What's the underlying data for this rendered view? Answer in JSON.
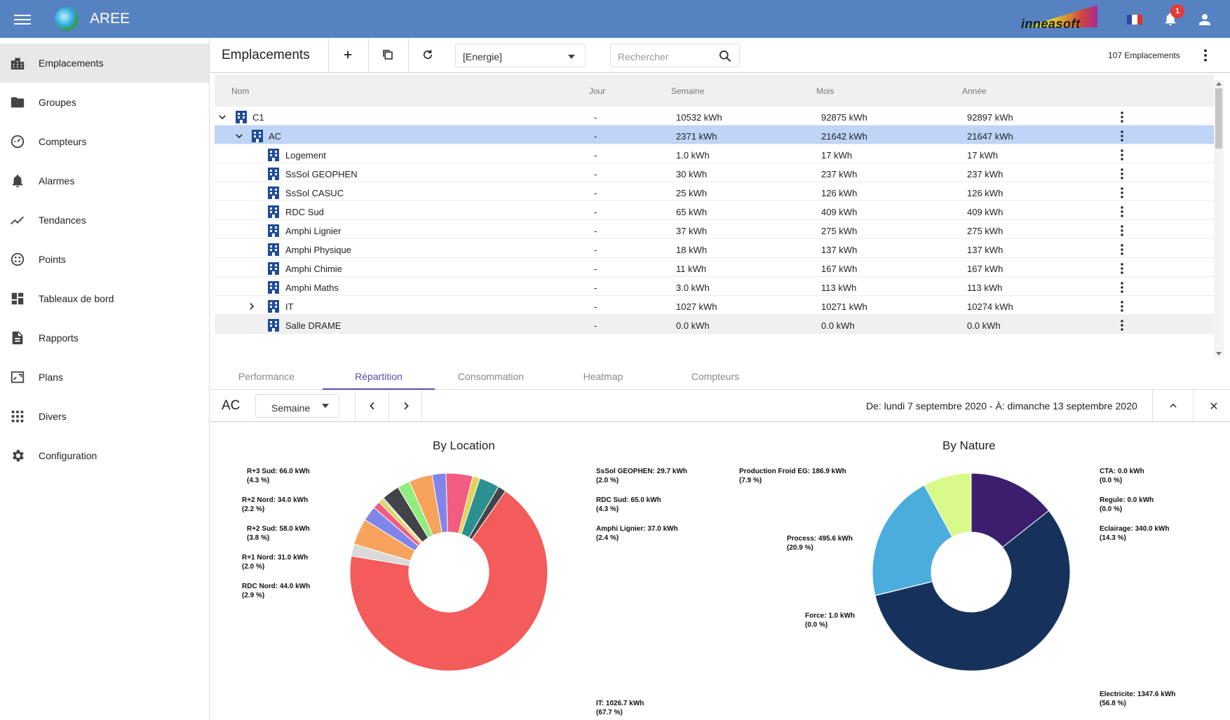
{
  "app": {
    "title": "AREE",
    "brand": "inneasoft",
    "notifications": "1"
  },
  "sidebar": {
    "items": [
      {
        "label": "Emplacements",
        "icon": "buildings-icon"
      },
      {
        "label": "Groupes",
        "icon": "folder-icon"
      },
      {
        "label": "Compteurs",
        "icon": "meter-icon"
      },
      {
        "label": "Alarmes",
        "icon": "bell-icon"
      },
      {
        "label": "Tendances",
        "icon": "trend-icon"
      },
      {
        "label": "Points",
        "icon": "points-icon"
      },
      {
        "label": "Tableaux de bord",
        "icon": "dashboard-icon"
      },
      {
        "label": "Rapports",
        "icon": "report-icon"
      },
      {
        "label": "Plans",
        "icon": "plan-icon"
      },
      {
        "label": "Divers",
        "icon": "grid-icon"
      },
      {
        "label": "Configuration",
        "icon": "gear-icon"
      }
    ]
  },
  "toolbar": {
    "title": "Emplacements",
    "filter": "[Energie]",
    "search_placeholder": "Rechercher",
    "count": "107 Emplacements"
  },
  "table": {
    "headers": {
      "name": "Nom",
      "day": "Jour",
      "week": "Semaine",
      "month": "Mois",
      "year": "Année"
    },
    "rows": [
      {
        "name": "C1",
        "day": "-",
        "week": "10532 kWh",
        "month": "92875 kWh",
        "year": "92897 kWh"
      },
      {
        "name": "AC",
        "day": "-",
        "week": "2371 kWh",
        "month": "21642 kWh",
        "year": "21647 kWh"
      },
      {
        "name": "Logement",
        "day": "-",
        "week": "1.0 kWh",
        "month": "17 kWh",
        "year": "17 kWh"
      },
      {
        "name": "SsSol GEOPHEN",
        "day": "-",
        "week": "30 kWh",
        "month": "237 kWh",
        "year": "237 kWh"
      },
      {
        "name": "SsSol CASUC",
        "day": "-",
        "week": "25 kWh",
        "month": "126 kWh",
        "year": "126 kWh"
      },
      {
        "name": "RDC Sud",
        "day": "-",
        "week": "65 kWh",
        "month": "409 kWh",
        "year": "409 kWh"
      },
      {
        "name": "Amphi Lignier",
        "day": "-",
        "week": "37 kWh",
        "month": "275 kWh",
        "year": "275 kWh"
      },
      {
        "name": "Amphi Physique",
        "day": "-",
        "week": "18 kWh",
        "month": "137 kWh",
        "year": "137 kWh"
      },
      {
        "name": "Amphi Chimie",
        "day": "-",
        "week": "11 kWh",
        "month": "167 kWh",
        "year": "167 kWh"
      },
      {
        "name": "Amphi Maths",
        "day": "-",
        "week": "3.0 kWh",
        "month": "113 kWh",
        "year": "113 kWh"
      },
      {
        "name": "IT",
        "day": "-",
        "week": "1027 kWh",
        "month": "10271 kWh",
        "year": "10274 kWh"
      },
      {
        "name": "Salle DRAME",
        "day": "-",
        "week": "0.0 kWh",
        "month": "0.0 kWh",
        "year": "0.0 kWh"
      }
    ]
  },
  "tabs": [
    "Performance",
    "Répartition",
    "Consommation",
    "Heatmap",
    "Compteurs"
  ],
  "panel": {
    "title": "AC",
    "period": "Semaine",
    "range": "De: lundi 7 septembre 2020 - À: dimanche 13 septembre 2020"
  },
  "chart_data": [
    {
      "type": "pie",
      "title": "By Location",
      "slices": [
        {
          "label": "IT: 1026.7 kWh",
          "pct": "(67.7 %)",
          "value": 1026.7,
          "color": "#f45b5b"
        },
        {
          "label": "SsSol GEOPHEN: 29.7 kWh",
          "pct": "(2.0 %)",
          "value": 29.7,
          "color": "#d9d9d9"
        },
        {
          "label": "RDC Sud: 65.0 kWh",
          "pct": "(4.3 %)",
          "value": 65.0,
          "color": "#f7a35c"
        },
        {
          "label": "Amphi Lignier: 37.0 kWh",
          "pct": "(2.4 %)",
          "value": 37.0,
          "color": "#8085e9"
        },
        {
          "label": "",
          "pct": "",
          "value": 18.0,
          "color": "#f15c80"
        },
        {
          "label": "",
          "pct": "",
          "value": 11.0,
          "color": "#e4d354"
        },
        {
          "label": "",
          "pct": "",
          "value": 3.0,
          "color": "#2b908f"
        },
        {
          "label": "",
          "pct": "",
          "value": 1.0,
          "color": "#90ed7d"
        },
        {
          "label": "RDC Nord: 44.0 kWh",
          "pct": "(2.9 %)",
          "value": 44.0,
          "color": "#434348"
        },
        {
          "label": "R+1 Nord: 31.0 kWh",
          "pct": "(2.0 %)",
          "value": 31.0,
          "color": "#90ed7d"
        },
        {
          "label": "R+2 Sud: 58.0 kWh",
          "pct": "(3.8 %)",
          "value": 58.0,
          "color": "#f7a35c"
        },
        {
          "label": "R+2 Nord: 34.0 kWh",
          "pct": "(2.2 %)",
          "value": 34.0,
          "color": "#8085e9"
        },
        {
          "label": "R+3 Sud: 66.0 kWh",
          "pct": "(4.3 %)",
          "value": 66.0,
          "color": "#f15c80"
        },
        {
          "label": "",
          "pct": "",
          "value": 18.0,
          "color": "#e4d354"
        },
        {
          "label": "",
          "pct": "",
          "value": 50.0,
          "color": "#2b908f"
        },
        {
          "label": "",
          "pct": "",
          "value": 20.0,
          "color": "#434348"
        }
      ]
    },
    {
      "type": "pie",
      "title": "By Nature",
      "slices": [
        {
          "label": "CTA: 0.0 kWh",
          "pct": "(0.0 %)",
          "value": 0.0,
          "color": "#7cb5ec"
        },
        {
          "label": "Regule: 0.0 kWh",
          "pct": "(0.0 %)",
          "value": 0.0,
          "color": "#434348"
        },
        {
          "label": "Eclairage: 340.0 kWh",
          "pct": "(14.3 %)",
          "value": 340.0,
          "color": "#3b1f6e"
        },
        {
          "label": "Electricite: 1347.6 kWh",
          "pct": "(56.8 %)",
          "value": 1347.6,
          "color": "#16325c"
        },
        {
          "label": "Force: 1.0 kWh",
          "pct": "(0.0 %)",
          "value": 1.0,
          "color": "#90ed7d"
        },
        {
          "label": "Process: 495.6 kWh",
          "pct": "(20.9 %)",
          "value": 495.6,
          "color": "#4aaddc"
        },
        {
          "label": "Production Froid EG: 186.9 kWh",
          "pct": "(7.9 %)",
          "value": 186.9,
          "color": "#d9f98a"
        }
      ]
    }
  ]
}
